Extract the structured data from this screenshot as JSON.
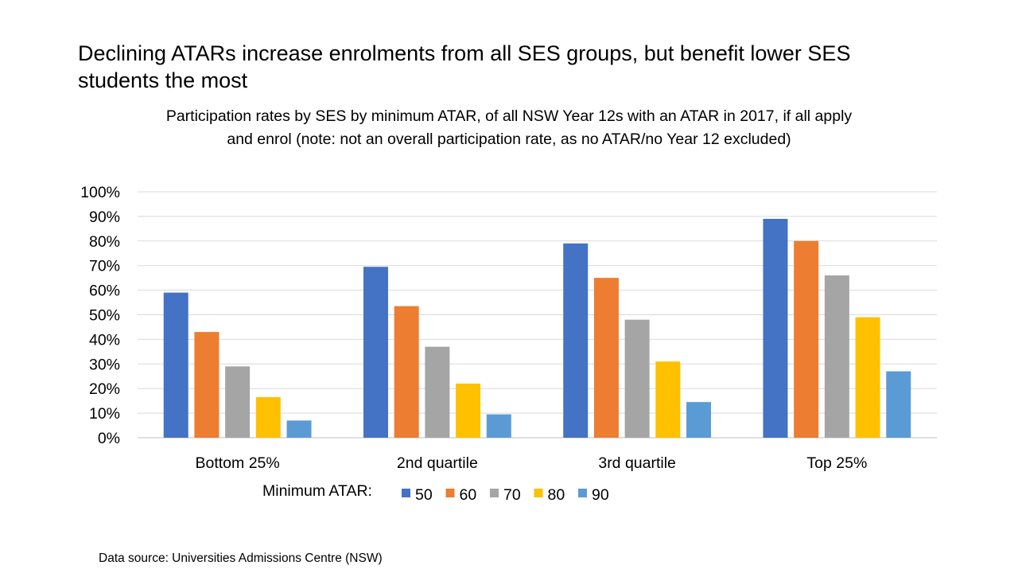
{
  "title": "Declining ATARs increase enrolments from all SES groups, but benefit lower SES students the most",
  "source": "Data source: Universities Admissions Centre (NSW)",
  "chart_data": {
    "type": "bar",
    "title": "Participation rates by SES by minimum ATAR, of all NSW Year 12s with an ATAR in 2017, if all apply and enrol (note: not an overall participation rate, as no ATAR/no Year 12 excluded)",
    "xlabel": "",
    "ylabel": "",
    "ylim": [
      0,
      100
    ],
    "yticks": [
      "0%",
      "10%",
      "20%",
      "30%",
      "40%",
      "50%",
      "60%",
      "70%",
      "80%",
      "90%",
      "100%"
    ],
    "grid": true,
    "legend_title": "Minimum ATAR:",
    "legend_position": "bottom",
    "categories": [
      "Bottom 25%",
      "2nd quartile",
      "3rd quartile",
      "Top 25%"
    ],
    "series": [
      {
        "name": "50",
        "color": "#4472C4",
        "values": [
          59,
          69.5,
          79,
          89
        ]
      },
      {
        "name": "60",
        "color": "#ED7D31",
        "values": [
          43,
          53.5,
          65,
          80
        ]
      },
      {
        "name": "70",
        "color": "#A5A5A5",
        "values": [
          29,
          37,
          48,
          66
        ]
      },
      {
        "name": "80",
        "color": "#FFC000",
        "values": [
          16.5,
          22,
          31,
          49
        ]
      },
      {
        "name": "90",
        "color": "#5B9BD5",
        "values": [
          7,
          9.5,
          14.5,
          27
        ]
      }
    ]
  }
}
